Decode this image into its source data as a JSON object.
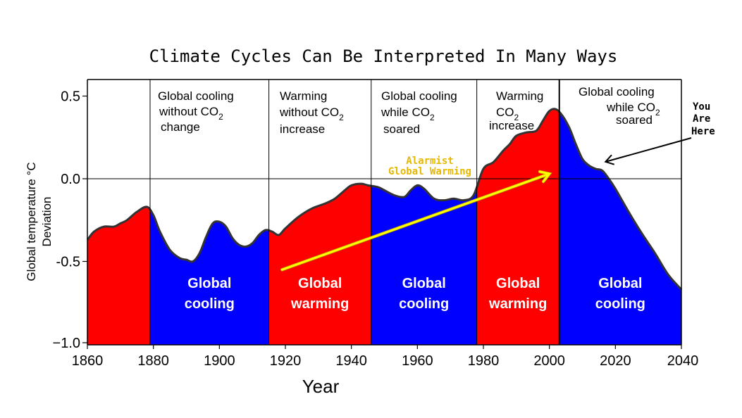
{
  "chart_data": {
    "type": "area",
    "title": "Climate Cycles Can Be Interpreted In Many Ways",
    "xlabel": "Year",
    "ylabel": [
      "Global temperature °C",
      "Deviation"
    ],
    "xlim": [
      1860,
      2040
    ],
    "ylim": [
      -1.0,
      0.6
    ],
    "x_ticks": [
      "1860",
      "1880",
      "1900",
      "1920",
      "1940",
      "1960",
      "1980",
      "2000",
      "2020",
      "2040"
    ],
    "y_ticks": [
      {
        "value": 0.5,
        "label": "0.5"
      },
      {
        "value": 0.0,
        "label": "0.0"
      },
      {
        "value": -0.5,
        "label": "-0.5"
      },
      {
        "value": -1.0,
        "label": "−1.0"
      }
    ],
    "grid": false,
    "series": [
      {
        "x": [
          1860,
          1862,
          1865,
          1868,
          1870,
          1872,
          1875,
          1878,
          1880,
          1882,
          1885,
          1888,
          1890,
          1892,
          1894,
          1896,
          1898,
          1900,
          1902,
          1904,
          1906,
          1908,
          1910,
          1912,
          1914,
          1916,
          1918,
          1920,
          1924,
          1928,
          1932,
          1935,
          1938,
          1940,
          1943,
          1945,
          1948,
          1950,
          1953,
          1956,
          1958,
          1960,
          1962,
          1965,
          1968,
          1971,
          1974,
          1977,
          1980,
          1983,
          1986,
          1988,
          1990,
          1993,
          1996,
          1998,
          2000,
          2002,
          2004,
          2006,
          2008,
          2010,
          2012,
          2014,
          2016,
          2018,
          2020,
          2024,
          2028,
          2032,
          2036,
          2040
        ],
        "y": [
          -0.37,
          -0.32,
          -0.29,
          -0.29,
          -0.27,
          -0.25,
          -0.2,
          -0.17,
          -0.22,
          -0.32,
          -0.43,
          -0.48,
          -0.49,
          -0.5,
          -0.45,
          -0.35,
          -0.27,
          -0.26,
          -0.29,
          -0.36,
          -0.4,
          -0.41,
          -0.39,
          -0.34,
          -0.31,
          -0.32,
          -0.34,
          -0.3,
          -0.23,
          -0.18,
          -0.15,
          -0.12,
          -0.07,
          -0.04,
          -0.03,
          -0.04,
          -0.05,
          -0.07,
          -0.1,
          -0.11,
          -0.07,
          -0.04,
          -0.06,
          -0.12,
          -0.13,
          -0.12,
          -0.13,
          -0.1,
          0.06,
          0.1,
          0.17,
          0.21,
          0.26,
          0.28,
          0.29,
          0.35,
          0.41,
          0.42,
          0.38,
          0.31,
          0.21,
          0.12,
          0.08,
          0.06,
          0.05,
          0.0,
          -0.06,
          -0.2,
          -0.33,
          -0.45,
          -0.58,
          -0.67
        ]
      }
    ],
    "periods": [
      {
        "start": 1860,
        "end": 1879,
        "color": "#ff0000",
        "label_lines": []
      },
      {
        "start": 1879,
        "end": 1915,
        "color": "#0000ff",
        "label_lines": [
          "Global",
          "cooling"
        ]
      },
      {
        "start": 1915,
        "end": 1946,
        "color": "#ff0000",
        "label_lines": [
          "Global",
          "warming"
        ]
      },
      {
        "start": 1946,
        "end": 1978,
        "color": "#0000ff",
        "label_lines": [
          "Global",
          "cooling"
        ]
      },
      {
        "start": 1978,
        "end": 2003,
        "color": "#ff0000",
        "label_lines": [
          "Global",
          "warming"
        ]
      },
      {
        "start": 2003,
        "end": 2040,
        "color": "#0000ff",
        "label_lines": [
          "Global",
          "cooling"
        ]
      }
    ],
    "annotations": {
      "panel1": {
        "line1": "Global cooling",
        "line2a": "without  CO",
        "line2sub": "2",
        "line3": "change"
      },
      "panel2": {
        "line1": "Warming",
        "line2a": "without  CO",
        "line2sub": "2",
        "line3": "increase"
      },
      "panel3": {
        "line1": "Global cooling",
        "line2a": "while CO",
        "line2sub": "2",
        "line3": "soared"
      },
      "panel4": {
        "line1": "Warming",
        "line2a": "CO",
        "line2sub": "2",
        "line3": "increase"
      },
      "panel5": {
        "line1": "Global cooling",
        "line2a": "while CO",
        "line2sub": "2",
        "line3": "soared"
      },
      "you_are_here": [
        "You",
        "Are",
        "Here"
      ],
      "alarmist": [
        "Alarmist",
        "Global Warming"
      ]
    },
    "trend_arrow": {
      "from": [
        1919,
        -0.55
      ],
      "to": [
        2000,
        0.03
      ]
    },
    "pointer_arrow": {
      "from": [
        2019,
        0.13
      ],
      "to": [
        2017,
        0.06
      ]
    },
    "colors": {
      "warming": "#ff0000",
      "cooling": "#0000ff",
      "trend_arrow": "#ffff00",
      "alarmist_text": "#e6b800",
      "curve_edge": "#333333"
    }
  }
}
